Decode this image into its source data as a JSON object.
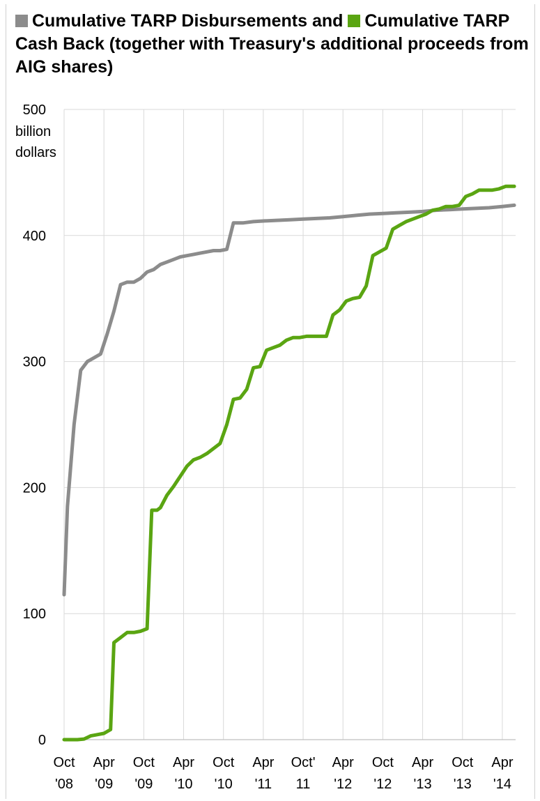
{
  "title": {
    "series1_label": "Cumulative TARP Disbursements and",
    "series2_label": "Cumulative",
    "rest": "TARP Cash Back (together with Treasury's additional proceeds from AIG shares)"
  },
  "chart_data": {
    "type": "line",
    "ylabel": "billion dollars",
    "ylim": [
      0,
      500
    ],
    "yticks": [
      0,
      100,
      200,
      300,
      400,
      500
    ],
    "x_unit": "months since Oct 2008",
    "xlim": [
      0,
      68
    ],
    "xticks": [
      {
        "x": 0,
        "line1": "Oct",
        "line2": "'08"
      },
      {
        "x": 6,
        "line1": "Apr",
        "line2": "'09"
      },
      {
        "x": 12,
        "line1": "Oct",
        "line2": "'09"
      },
      {
        "x": 18,
        "line1": "Apr",
        "line2": "'10"
      },
      {
        "x": 24,
        "line1": "Oct",
        "line2": "'10"
      },
      {
        "x": 30,
        "line1": "Apr",
        "line2": "'11"
      },
      {
        "x": 36,
        "line1": "Oct'",
        "line2": "11"
      },
      {
        "x": 42,
        "line1": "Apr",
        "line2": "'12"
      },
      {
        "x": 48,
        "line1": "Oct",
        "line2": "'12"
      },
      {
        "x": 54,
        "line1": "Apr",
        "line2": "'13"
      },
      {
        "x": 60,
        "line1": "Oct",
        "line2": "'13"
      },
      {
        "x": 66,
        "line1": "Apr",
        "line2": "'14"
      }
    ],
    "grid": true,
    "series": [
      {
        "name": "Cumulative TARP Disbursements",
        "color": "#8c8c8c",
        "points": [
          [
            0,
            115
          ],
          [
            0.5,
            185
          ],
          [
            1.5,
            250
          ],
          [
            2.5,
            293
          ],
          [
            3.5,
            300
          ],
          [
            5.5,
            306
          ],
          [
            6.5,
            322
          ],
          [
            7.5,
            340
          ],
          [
            8.5,
            361
          ],
          [
            9.5,
            363
          ],
          [
            10.5,
            363
          ],
          [
            11.5,
            366
          ],
          [
            12.5,
            371
          ],
          [
            13.5,
            373
          ],
          [
            14.5,
            377
          ],
          [
            15.5,
            379
          ],
          [
            16.5,
            381
          ],
          [
            17.5,
            383
          ],
          [
            18.5,
            384
          ],
          [
            19.5,
            385
          ],
          [
            20.5,
            386
          ],
          [
            21.5,
            387
          ],
          [
            22.5,
            388
          ],
          [
            23.5,
            388
          ],
          [
            24.5,
            389
          ],
          [
            25.5,
            410
          ],
          [
            27,
            410
          ],
          [
            28.5,
            411
          ],
          [
            30,
            411.5
          ],
          [
            32,
            412
          ],
          [
            34,
            412.5
          ],
          [
            36,
            413
          ],
          [
            38,
            413.5
          ],
          [
            40,
            414
          ],
          [
            42,
            415
          ],
          [
            44,
            416
          ],
          [
            46,
            417
          ],
          [
            48,
            417.5
          ],
          [
            50,
            418
          ],
          [
            52,
            418.5
          ],
          [
            54,
            419
          ],
          [
            56,
            420
          ],
          [
            58,
            420.5
          ],
          [
            60,
            421
          ],
          [
            62,
            421.5
          ],
          [
            64,
            422
          ],
          [
            66,
            423
          ],
          [
            67.8,
            424
          ]
        ]
      },
      {
        "name": "Cumulative TARP Cash Back",
        "color": "#5aa512",
        "points": [
          [
            0,
            0
          ],
          [
            1,
            0
          ],
          [
            2,
            0
          ],
          [
            3,
            0.5
          ],
          [
            4,
            3
          ],
          [
            5,
            4
          ],
          [
            6,
            5
          ],
          [
            7,
            8
          ],
          [
            7.5,
            77
          ],
          [
            8.5,
            81
          ],
          [
            9.5,
            85
          ],
          [
            10.5,
            85
          ],
          [
            11.5,
            86
          ],
          [
            12.5,
            88
          ],
          [
            13.2,
            182
          ],
          [
            14,
            182
          ],
          [
            14.5,
            184
          ],
          [
            15.5,
            194
          ],
          [
            16.5,
            201
          ],
          [
            17.5,
            209
          ],
          [
            18.5,
            217
          ],
          [
            19.5,
            222
          ],
          [
            20.5,
            224
          ],
          [
            21.5,
            227
          ],
          [
            22.5,
            231
          ],
          [
            23.5,
            235
          ],
          [
            24.5,
            250
          ],
          [
            25.5,
            270
          ],
          [
            26.5,
            271
          ],
          [
            27.5,
            278
          ],
          [
            28.5,
            295
          ],
          [
            29.5,
            296
          ],
          [
            30.5,
            309
          ],
          [
            31.5,
            311
          ],
          [
            32.5,
            313
          ],
          [
            33.5,
            317
          ],
          [
            34.5,
            319
          ],
          [
            35.5,
            319
          ],
          [
            36.5,
            320
          ],
          [
            37.5,
            320
          ],
          [
            38.5,
            320
          ],
          [
            39.5,
            320
          ],
          [
            40.5,
            337
          ],
          [
            41.5,
            341
          ],
          [
            42.5,
            348
          ],
          [
            43.5,
            350
          ],
          [
            44.5,
            351
          ],
          [
            45.5,
            360
          ],
          [
            46.5,
            384
          ],
          [
            47.5,
            387
          ],
          [
            48.5,
            390
          ],
          [
            49.5,
            405
          ],
          [
            50.5,
            408
          ],
          [
            51.5,
            411
          ],
          [
            52.5,
            413
          ],
          [
            53.5,
            415
          ],
          [
            54.5,
            417
          ],
          [
            55.5,
            420
          ],
          [
            56.5,
            421
          ],
          [
            57.5,
            423
          ],
          [
            58.5,
            423
          ],
          [
            59.5,
            424
          ],
          [
            60.5,
            431
          ],
          [
            61.5,
            433
          ],
          [
            62.5,
            436
          ],
          [
            63.5,
            436
          ],
          [
            64.5,
            436
          ],
          [
            65.5,
            437
          ],
          [
            66.5,
            439
          ],
          [
            67.8,
            439
          ]
        ]
      }
    ]
  }
}
